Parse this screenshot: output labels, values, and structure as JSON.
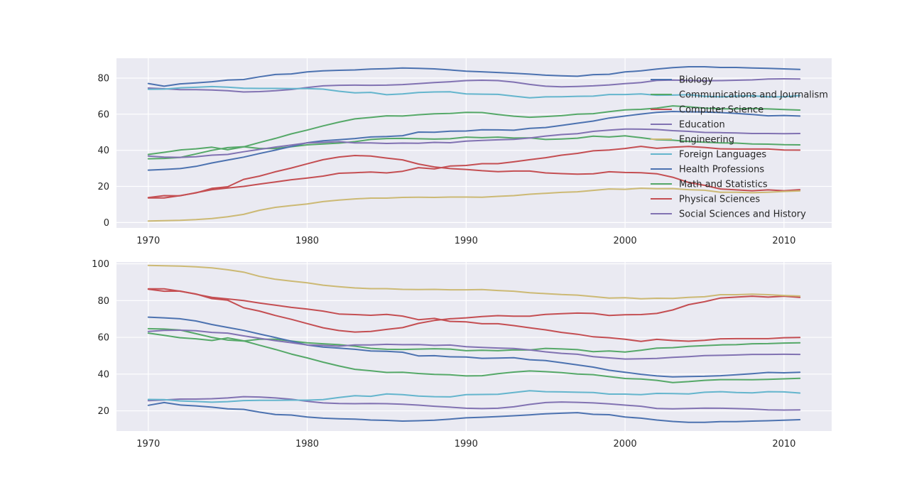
{
  "chart_data": [
    {
      "type": "line",
      "title": "",
      "xlabel": "",
      "ylabel": "",
      "xlim": [
        1968,
        2013
      ],
      "ylim": [
        -3,
        91
      ],
      "xticks": [
        1970,
        1980,
        1990,
        2000,
        2010
      ],
      "yticks": [
        0,
        20,
        40,
        60,
        80
      ],
      "grid": true,
      "legend": "right",
      "x": [
        1970,
        1971,
        1972,
        1973,
        1974,
        1975,
        1976,
        1977,
        1978,
        1979,
        1980,
        1981,
        1982,
        1983,
        1984,
        1985,
        1986,
        1987,
        1988,
        1989,
        1990,
        1991,
        1992,
        1993,
        1994,
        1995,
        1996,
        1997,
        1998,
        1999,
        2000,
        2001,
        2002,
        2003,
        2004,
        2005,
        2006,
        2007,
        2008,
        2009,
        2010,
        2011
      ],
      "series": [
        {
          "name": "Biology",
          "color": "#4c72b0",
          "values": [
            77.0,
            75.5,
            76.8,
            77.3,
            78.0,
            78.9,
            79.2,
            80.7,
            82.0,
            82.3,
            83.4,
            84.0,
            84.3,
            84.5,
            85.0,
            85.2,
            85.6,
            85.4,
            85.1,
            84.5,
            83.8,
            83.5,
            83.1,
            82.7,
            82.2,
            81.6,
            81.3,
            81.0,
            81.9,
            82.1,
            83.4,
            84.0,
            85.0,
            85.8,
            86.3,
            86.3,
            85.9,
            85.9,
            85.6,
            85.4,
            85.1,
            84.8
          ]
        },
        {
          "name": "Communications and Journalism",
          "color": "#55a868",
          "values": [
            35.3,
            35.5,
            36.0,
            38.0,
            40.0,
            41.5,
            42.0,
            41.0,
            41.0,
            42.0,
            43.0,
            43.5,
            44.0,
            44.8,
            46.0,
            46.5,
            46.6,
            46.4,
            46.2,
            46.4,
            47.3,
            47.0,
            47.3,
            46.8,
            46.9,
            46.0,
            46.3,
            46.7,
            47.8,
            47.4,
            48.0,
            47.0,
            45.9,
            45.6,
            44.9,
            44.5,
            44.1,
            44.0,
            43.5,
            43.4,
            43.1,
            43.0
          ]
        },
        {
          "name": "Computer Science",
          "color": "#c44e52",
          "values": [
            13.6,
            13.6,
            14.9,
            16.4,
            18.9,
            19.8,
            23.9,
            25.7,
            28.1,
            30.2,
            32.5,
            34.8,
            36.3,
            37.1,
            36.8,
            35.7,
            34.7,
            32.4,
            30.8,
            29.9,
            29.4,
            28.7,
            28.2,
            28.5,
            28.5,
            27.5,
            27.1,
            26.8,
            27.0,
            28.1,
            27.7,
            27.6,
            27.0,
            25.1,
            22.2,
            20.6,
            18.6,
            18.1,
            17.6,
            18.1,
            17.6,
            18.2
          ]
        },
        {
          "name": "Education",
          "color": "#8172b2",
          "values": [
            74.5,
            74.1,
            73.6,
            73.6,
            73.4,
            73.0,
            72.3,
            72.5,
            73.0,
            73.7,
            74.8,
            75.7,
            76.0,
            76.1,
            76.0,
            76.1,
            76.4,
            76.9,
            77.5,
            78.0,
            78.6,
            78.8,
            78.6,
            77.8,
            76.5,
            75.5,
            75.2,
            75.4,
            75.7,
            76.2,
            76.9,
            77.5,
            78.7,
            78.9,
            78.7,
            78.5,
            78.6,
            78.8,
            79.0,
            79.5,
            79.6,
            79.5
          ]
        },
        {
          "name": "Engineering",
          "color": "#ccb974",
          "values": [
            0.8,
            1.0,
            1.2,
            1.6,
            2.2,
            3.2,
            4.5,
            6.8,
            8.4,
            9.4,
            10.3,
            11.6,
            12.4,
            13.1,
            13.5,
            13.5,
            13.9,
            14.0,
            13.9,
            14.1,
            14.1,
            14.0,
            14.5,
            14.9,
            15.7,
            16.2,
            16.7,
            17.0,
            17.8,
            18.6,
            18.4,
            19.0,
            18.7,
            18.8,
            18.2,
            17.9,
            16.8,
            16.8,
            16.5,
            16.8,
            17.2,
            17.5
          ]
        },
        {
          "name": "Foreign Languages",
          "color": "#64b5cd",
          "values": [
            73.8,
            73.9,
            74.6,
            74.9,
            75.3,
            75.0,
            74.4,
            74.3,
            74.3,
            74.2,
            74.2,
            73.9,
            72.7,
            71.8,
            72.1,
            70.8,
            71.2,
            72.0,
            72.3,
            72.4,
            71.2,
            71.1,
            71.0,
            70.0,
            69.1,
            69.6,
            69.7,
            69.9,
            70.0,
            70.9,
            70.9,
            71.2,
            70.5,
            70.6,
            70.8,
            69.9,
            69.6,
            70.0,
            70.2,
            69.6,
            69.7,
            70.3
          ]
        },
        {
          "name": "Health Professions",
          "color": "#4c72b0",
          "values": [
            29.0,
            29.4,
            29.9,
            31.1,
            33.0,
            34.6,
            36.2,
            38.2,
            40.1,
            42.1,
            44.2,
            45.3,
            45.9,
            46.5,
            47.4,
            47.6,
            48.1,
            50.1,
            50.0,
            50.6,
            50.7,
            51.4,
            51.3,
            51.1,
            52.2,
            52.6,
            53.8,
            55.0,
            56.2,
            57.9,
            59.0,
            60.1,
            61.0,
            61.5,
            61.3,
            61.2,
            60.9,
            60.4,
            59.8,
            59.1,
            59.3,
            59.0
          ]
        },
        {
          "name": "Math and Statistics",
          "color": "#55a868",
          "values": [
            37.7,
            38.9,
            40.2,
            40.8,
            41.7,
            40.3,
            41.9,
            44.3,
            46.6,
            49.1,
            51.2,
            53.5,
            55.6,
            57.4,
            58.2,
            59.1,
            59.0,
            59.7,
            60.2,
            60.4,
            61.0,
            60.9,
            59.8,
            58.9,
            58.3,
            58.7,
            59.2,
            60.0,
            60.3,
            61.4,
            62.4,
            62.7,
            63.4,
            64.6,
            64.1,
            63.4,
            63.0,
            63.0,
            63.1,
            62.9,
            62.6,
            62.3
          ]
        },
        {
          "name": "Physical Sciences",
          "color": "#c44e52",
          "values": [
            13.8,
            14.9,
            14.8,
            16.5,
            18.2,
            19.1,
            20.0,
            21.3,
            22.5,
            23.7,
            24.6,
            25.7,
            27.3,
            27.6,
            28.0,
            27.5,
            28.4,
            30.4,
            29.7,
            31.3,
            31.6,
            32.6,
            32.6,
            33.6,
            34.8,
            35.9,
            37.3,
            38.3,
            39.7,
            40.2,
            41.0,
            42.2,
            41.1,
            41.7,
            42.1,
            41.6,
            40.8,
            40.7,
            40.7,
            40.7,
            40.2,
            40.1
          ]
        },
        {
          "name": "Social Sciences and History",
          "color": "#8172b2",
          "values": [
            36.8,
            36.2,
            36.1,
            36.4,
            37.3,
            37.7,
            39.2,
            40.5,
            41.8,
            42.9,
            44.1,
            44.4,
            44.8,
            44.1,
            44.1,
            43.8,
            44.0,
            43.9,
            44.4,
            44.2,
            45.1,
            45.5,
            45.8,
            46.1,
            46.8,
            47.9,
            48.7,
            49.2,
            50.5,
            51.2,
            51.8,
            51.7,
            51.5,
            50.9,
            50.5,
            49.9,
            49.8,
            49.6,
            49.3,
            49.3,
            49.2,
            49.3
          ]
        }
      ]
    },
    {
      "type": "line",
      "title": "",
      "xlabel": "",
      "ylabel": "",
      "xlim": [
        1968,
        2013
      ],
      "ylim": [
        9,
        101
      ],
      "xticks": [
        1970,
        1980,
        1990,
        2000,
        2010
      ],
      "yticks": [
        20,
        40,
        60,
        80,
        100
      ],
      "grid": true,
      "legend": "none",
      "x": [
        1970,
        1971,
        1972,
        1973,
        1974,
        1975,
        1976,
        1977,
        1978,
        1979,
        1980,
        1981,
        1982,
        1983,
        1984,
        1985,
        1986,
        1987,
        1988,
        1989,
        1990,
        1991,
        1992,
        1993,
        1994,
        1995,
        1996,
        1997,
        1998,
        1999,
        2000,
        2001,
        2002,
        2003,
        2004,
        2005,
        2006,
        2007,
        2008,
        2009,
        2010,
        2011
      ],
      "series": [
        {
          "name": "Biology",
          "color": "#4c72b0",
          "values": [
            23.0,
            24.5,
            23.2,
            22.7,
            22.0,
            21.1,
            20.8,
            19.3,
            18.0,
            17.7,
            16.6,
            16.0,
            15.7,
            15.5,
            15.0,
            14.8,
            14.4,
            14.6,
            14.9,
            15.5,
            16.2,
            16.5,
            16.9,
            17.3,
            17.8,
            18.4,
            18.7,
            19.0,
            18.1,
            17.9,
            16.6,
            16.0,
            15.0,
            14.2,
            13.7,
            13.7,
            14.1,
            14.1,
            14.4,
            14.6,
            14.9,
            15.2
          ]
        },
        {
          "name": "Communications and Journalism",
          "color": "#55a868",
          "values": [
            64.7,
            64.5,
            64.0,
            62.0,
            60.0,
            58.5,
            58.0,
            59.0,
            59.0,
            58.0,
            57.0,
            56.5,
            56.0,
            55.2,
            54.0,
            53.5,
            53.4,
            53.6,
            53.8,
            53.6,
            52.7,
            53.0,
            52.7,
            53.2,
            53.1,
            54.0,
            53.7,
            53.3,
            52.2,
            52.6,
            52.0,
            53.0,
            54.1,
            54.4,
            55.1,
            55.5,
            55.9,
            56.0,
            56.5,
            56.6,
            56.9,
            57.0
          ]
        },
        {
          "name": "Computer Science",
          "color": "#c44e52",
          "values": [
            86.4,
            86.4,
            85.1,
            83.6,
            81.1,
            80.2,
            76.1,
            74.3,
            71.9,
            69.8,
            67.5,
            65.2,
            63.7,
            62.9,
            63.2,
            64.3,
            65.3,
            67.6,
            69.2,
            70.1,
            70.6,
            71.3,
            71.8,
            71.5,
            71.5,
            72.5,
            72.9,
            73.2,
            73.0,
            71.9,
            72.3,
            72.4,
            73.0,
            74.9,
            77.8,
            79.4,
            81.4,
            81.9,
            82.4,
            81.9,
            82.4,
            81.8
          ]
        },
        {
          "name": "Education",
          "color": "#8172b2",
          "values": [
            25.5,
            25.9,
            26.4,
            26.4,
            26.6,
            27.0,
            27.7,
            27.5,
            27.0,
            26.3,
            25.2,
            24.3,
            24.0,
            23.9,
            24.0,
            23.9,
            23.6,
            23.1,
            22.5,
            22.0,
            21.4,
            21.2,
            21.4,
            22.2,
            23.5,
            24.5,
            24.8,
            24.6,
            24.3,
            23.8,
            23.1,
            22.5,
            21.3,
            21.1,
            21.3,
            21.5,
            21.4,
            21.2,
            21.0,
            20.5,
            20.4,
            20.5
          ]
        },
        {
          "name": "Engineering",
          "color": "#ccb974",
          "values": [
            99.2,
            99.0,
            98.8,
            98.4,
            97.8,
            96.8,
            95.5,
            93.2,
            91.6,
            90.6,
            89.7,
            88.4,
            87.6,
            86.9,
            86.5,
            86.5,
            86.1,
            86.0,
            86.1,
            85.9,
            85.9,
            86.0,
            85.5,
            85.1,
            84.3,
            83.8,
            83.3,
            83.0,
            82.2,
            81.4,
            81.6,
            81.0,
            81.3,
            81.2,
            81.8,
            82.1,
            83.2,
            83.2,
            83.5,
            83.2,
            82.8,
            82.5
          ]
        },
        {
          "name": "Foreign Languages",
          "color": "#64b5cd",
          "values": [
            26.2,
            26.1,
            25.4,
            25.1,
            24.7,
            25.0,
            25.6,
            25.7,
            25.7,
            25.8,
            25.8,
            26.1,
            27.3,
            28.2,
            27.9,
            29.2,
            28.8,
            28.0,
            27.7,
            27.6,
            28.8,
            28.9,
            29.0,
            30.0,
            30.9,
            30.4,
            30.3,
            30.1,
            30.0,
            29.1,
            29.1,
            28.8,
            29.5,
            29.4,
            29.2,
            30.1,
            30.4,
            30.0,
            29.8,
            30.4,
            30.3,
            29.7
          ]
        },
        {
          "name": "Health Professions",
          "color": "#4c72b0",
          "values": [
            71.0,
            70.6,
            70.1,
            68.9,
            67.0,
            65.4,
            63.8,
            61.8,
            59.9,
            57.9,
            55.8,
            54.7,
            54.1,
            53.5,
            52.6,
            52.4,
            51.9,
            49.9,
            50.0,
            49.4,
            49.3,
            48.6,
            48.7,
            48.9,
            47.8,
            47.4,
            46.2,
            45.0,
            43.8,
            42.1,
            41.0,
            39.9,
            39.0,
            38.5,
            38.7,
            38.8,
            39.1,
            39.6,
            40.2,
            40.9,
            40.7,
            41.0
          ]
        },
        {
          "name": "Math and Statistics",
          "color": "#55a868",
          "values": [
            62.3,
            61.1,
            59.8,
            59.2,
            58.3,
            59.7,
            58.1,
            55.7,
            53.4,
            50.9,
            48.8,
            46.5,
            44.4,
            42.6,
            41.8,
            40.9,
            41.0,
            40.3,
            39.8,
            39.6,
            39.0,
            39.1,
            40.2,
            41.1,
            41.7,
            41.3,
            40.8,
            40.0,
            39.7,
            38.6,
            37.6,
            37.3,
            36.6,
            35.4,
            35.9,
            36.6,
            37.0,
            37.0,
            36.9,
            37.1,
            37.4,
            37.7
          ]
        },
        {
          "name": "Physical Sciences",
          "color": "#c44e52",
          "values": [
            86.2,
            85.1,
            85.2,
            83.5,
            81.8,
            80.9,
            80.0,
            78.7,
            77.5,
            76.3,
            75.4,
            74.3,
            72.7,
            72.4,
            72.0,
            72.5,
            71.6,
            69.6,
            70.3,
            68.7,
            68.4,
            67.4,
            67.4,
            66.4,
            65.2,
            64.1,
            62.7,
            61.7,
            60.3,
            59.8,
            59.0,
            57.8,
            58.9,
            58.3,
            57.9,
            58.4,
            59.2,
            59.3,
            59.3,
            59.3,
            59.8,
            59.9
          ]
        },
        {
          "name": "Social Sciences and History",
          "color": "#8172b2",
          "values": [
            63.2,
            63.8,
            63.9,
            63.6,
            62.7,
            62.3,
            60.8,
            59.5,
            58.2,
            57.1,
            55.9,
            55.6,
            55.2,
            55.9,
            55.9,
            56.2,
            56.0,
            56.1,
            55.6,
            55.8,
            54.9,
            54.5,
            54.2,
            53.9,
            53.2,
            52.1,
            51.3,
            50.8,
            49.5,
            48.8,
            48.2,
            48.3,
            48.5,
            49.1,
            49.5,
            50.1,
            50.2,
            50.4,
            50.7,
            50.7,
            50.8,
            50.7
          ]
        }
      ]
    }
  ]
}
